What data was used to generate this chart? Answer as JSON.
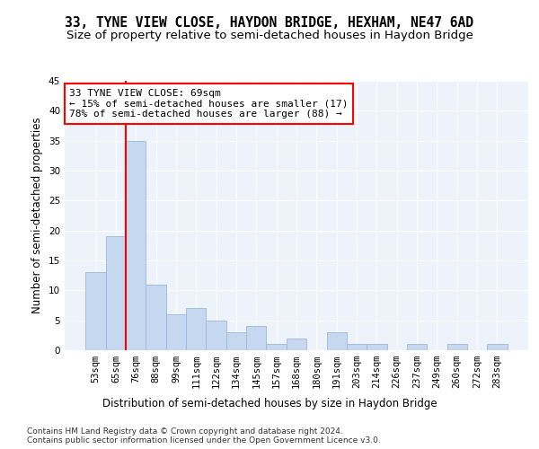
{
  "title": "33, TYNE VIEW CLOSE, HAYDON BRIDGE, HEXHAM, NE47 6AD",
  "subtitle": "Size of property relative to semi-detached houses in Haydon Bridge",
  "xlabel": "Distribution of semi-detached houses by size in Haydon Bridge",
  "ylabel": "Number of semi-detached properties",
  "categories": [
    "53sqm",
    "65sqm",
    "76sqm",
    "88sqm",
    "99sqm",
    "111sqm",
    "122sqm",
    "134sqm",
    "145sqm",
    "157sqm",
    "168sqm",
    "180sqm",
    "191sqm",
    "203sqm",
    "214sqm",
    "226sqm",
    "237sqm",
    "249sqm",
    "260sqm",
    "272sqm",
    "283sqm"
  ],
  "values": [
    13,
    19,
    35,
    11,
    6,
    7,
    5,
    3,
    4,
    1,
    2,
    0,
    3,
    1,
    1,
    0,
    1,
    0,
    1,
    0,
    1
  ],
  "bar_color": "#c5d8f0",
  "bar_edge_color": "#9ab8de",
  "annotation_text": "33 TYNE VIEW CLOSE: 69sqm\n← 15% of semi-detached houses are smaller (17)\n78% of semi-detached houses are larger (88) →",
  "annotation_box_color": "white",
  "annotation_box_edge_color": "red",
  "red_line_index": 1.5,
  "ylim": [
    0,
    45
  ],
  "yticks": [
    0,
    5,
    10,
    15,
    20,
    25,
    30,
    35,
    40,
    45
  ],
  "footer_line1": "Contains HM Land Registry data © Crown copyright and database right 2024.",
  "footer_line2": "Contains public sector information licensed under the Open Government Licence v3.0.",
  "bg_color": "#eef2fa",
  "grid_color": "white",
  "title_fontsize": 10.5,
  "subtitle_fontsize": 9.5,
  "axis_label_fontsize": 8.5,
  "tick_fontsize": 7.5,
  "annotation_fontsize": 8,
  "footer_fontsize": 6.5
}
